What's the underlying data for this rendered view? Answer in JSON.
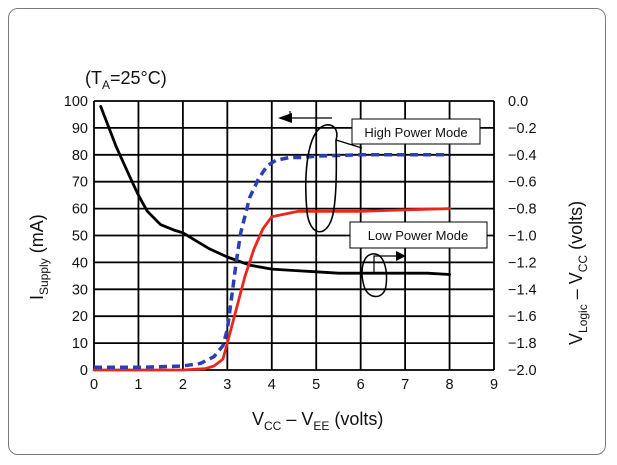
{
  "chart_data": {
    "type": "line",
    "annotation": {
      "open": "(T",
      "sub": "A",
      "rest": "=25°C)"
    },
    "xlabel": {
      "a": "V",
      "a_sub": "CC",
      "mid": " – V",
      "b_sub": "EE",
      "units": " (volts)"
    },
    "ylabel_left": {
      "main": "I",
      "sub": "Supply",
      "units": " (mA)"
    },
    "ylabel_right": {
      "main": "V",
      "sub": "Logic",
      "mid": " – V",
      "sub2": "CC",
      "units": " (volts)"
    },
    "xlim": [
      0,
      9
    ],
    "ylim_left": [
      0,
      100
    ],
    "ylim_right": [
      -2.0,
      0.0
    ],
    "x_ticks": [
      "0",
      "1",
      "2",
      "3",
      "4",
      "5",
      "6",
      "7",
      "8",
      "9"
    ],
    "y_left_ticks": [
      "0",
      "10",
      "20",
      "30",
      "40",
      "50",
      "60",
      "70",
      "80",
      "90",
      "100"
    ],
    "y_right_ticks": [
      "−2.0",
      "−1.8",
      "−1.6",
      "−1.4",
      "−1.2",
      "−1.0",
      "−0.8",
      "−0.6",
      "−0.4",
      "−0.2",
      "0.0"
    ],
    "grid": true,
    "series": [
      {
        "axis": "left",
        "color": "#000000",
        "style": "solid",
        "x": [
          0.15,
          0.5,
          0.8,
          1.0,
          1.2,
          1.5,
          1.8,
          2.0,
          2.3,
          2.6,
          3.0,
          3.5,
          4.0,
          4.5,
          5.0,
          5.5,
          6.0,
          6.5,
          7.0,
          7.5,
          8.0
        ],
        "y": [
          98,
          83,
          72,
          65,
          59,
          54,
          52,
          51,
          48,
          45,
          42,
          39,
          37.5,
          37,
          36.5,
          36,
          36,
          36,
          36,
          36,
          35.5
        ]
      },
      {
        "axis": "right",
        "color": "#e8261c",
        "style": "solid",
        "x": [
          0,
          1,
          2,
          2.5,
          2.7,
          2.9,
          3.0,
          3.2,
          3.4,
          3.6,
          3.8,
          4.0,
          4.3,
          4.6,
          5.0,
          6.0,
          7.0,
          8.0
        ],
        "y": [
          -2.0,
          -2.0,
          -2.0,
          -1.99,
          -1.97,
          -1.92,
          -1.8,
          -1.55,
          -1.3,
          -1.1,
          -0.95,
          -0.86,
          -0.84,
          -0.82,
          -0.82,
          -0.82,
          -0.81,
          -0.8
        ]
      },
      {
        "axis": "right",
        "color": "#2b3fb5",
        "style": "dashed",
        "x": [
          0,
          1,
          2,
          2.4,
          2.7,
          2.9,
          3.0,
          3.1,
          3.2,
          3.3,
          3.5,
          3.7,
          3.9,
          4.1,
          4.4,
          4.7,
          5.0,
          6.0,
          7.0,
          8.0
        ],
        "y": [
          -1.98,
          -1.98,
          -1.97,
          -1.95,
          -1.9,
          -1.82,
          -1.7,
          -1.45,
          -1.2,
          -0.98,
          -0.72,
          -0.58,
          -0.48,
          -0.44,
          -0.42,
          -0.42,
          -0.41,
          -0.4,
          -0.4,
          -0.4
        ]
      }
    ],
    "callouts": {
      "high": "High Power Mode",
      "low": "Low Power Mode"
    }
  }
}
